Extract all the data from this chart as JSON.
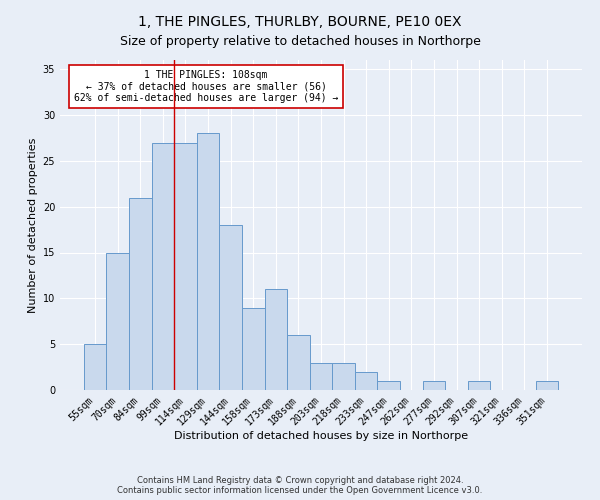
{
  "title": "1, THE PINGLES, THURLBY, BOURNE, PE10 0EX",
  "subtitle": "Size of property relative to detached houses in Northorpe",
  "xlabel": "Distribution of detached houses by size in Northorpe",
  "ylabel": "Number of detached properties",
  "categories": [
    "55sqm",
    "70sqm",
    "84sqm",
    "99sqm",
    "114sqm",
    "129sqm",
    "144sqm",
    "158sqm",
    "173sqm",
    "188sqm",
    "203sqm",
    "218sqm",
    "233sqm",
    "247sqm",
    "262sqm",
    "277sqm",
    "292sqm",
    "307sqm",
    "321sqm",
    "336sqm",
    "351sqm"
  ],
  "values": [
    5,
    15,
    21,
    27,
    27,
    28,
    18,
    9,
    11,
    6,
    3,
    3,
    2,
    1,
    0,
    1,
    0,
    1,
    0,
    0,
    1
  ],
  "bar_color": "#c9d9ed",
  "bar_edge_color": "#6699cc",
  "vline_x": 3.5,
  "vline_color": "#cc0000",
  "annotation_lines": [
    "1 THE PINGLES: 108sqm",
    "← 37% of detached houses are smaller (56)",
    "62% of semi-detached houses are larger (94) →"
  ],
  "annotation_box_color": "#ffffff",
  "annotation_box_edge": "#cc0000",
  "ylim": [
    0,
    36
  ],
  "yticks": [
    0,
    5,
    10,
    15,
    20,
    25,
    30,
    35
  ],
  "background_color": "#e8eef7",
  "plot_background": "#e8eef7",
  "footer": "Contains HM Land Registry data © Crown copyright and database right 2024.\nContains public sector information licensed under the Open Government Licence v3.0.",
  "title_fontsize": 10,
  "subtitle_fontsize": 9,
  "xlabel_fontsize": 8,
  "ylabel_fontsize": 8,
  "tick_fontsize": 7,
  "footer_fontsize": 6
}
